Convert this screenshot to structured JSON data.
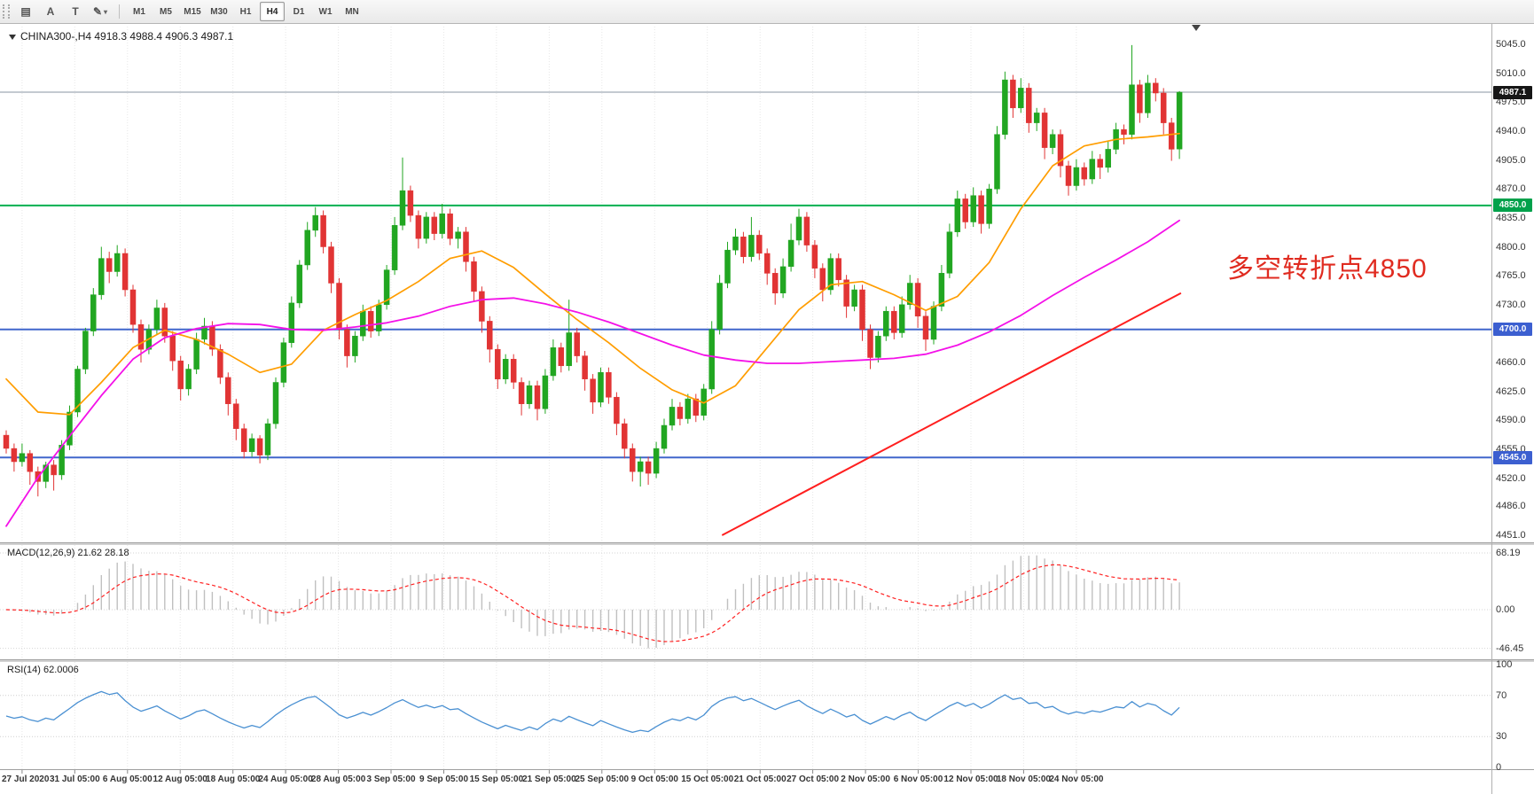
{
  "toolbar": {
    "tools": [
      {
        "id": "chart-window",
        "label": "▤",
        "caret": false
      },
      {
        "id": "arrow-tool",
        "label": "A",
        "caret": false
      },
      {
        "id": "text-tool",
        "label": "T",
        "caret": false
      },
      {
        "id": "draw-tool",
        "label": "✎",
        "caret": true
      }
    ],
    "timeframes": [
      "M1",
      "M5",
      "M15",
      "M30",
      "H1",
      "H4",
      "D1",
      "W1",
      "MN"
    ],
    "active_timeframe": "H4"
  },
  "chart_title": "CHINA300-,H4 4918.3 4988.4 4906.3 4987.1",
  "chart_data": {
    "type": "candlestick",
    "symbol": "CHINA300-",
    "timeframe": "H4",
    "ohlc_current": {
      "open": "4918.3",
      "high": "4988.4",
      "low": "4906.3",
      "close": "4987.1"
    },
    "price_axis_labels": [
      "5045.0",
      "5010.0",
      "4975.0",
      "4940.0",
      "4905.0",
      "4870.0",
      "4835.0",
      "4800.0",
      "4765.0",
      "4730.0",
      "4695.0",
      "4660.0",
      "4625.0",
      "4590.0",
      "4555.0",
      "4520.0",
      "4486.0",
      "4451.0"
    ],
    "time_axis_labels": [
      "27 Jul 2020",
      "31 Jul 05:00",
      "6 Aug 05:00",
      "12 Aug 05:00",
      "18 Aug 05:00",
      "24 Aug 05:00",
      "28 Aug 05:00",
      "3 Sep 05:00",
      "9 Sep 05:00",
      "15 Sep 05:00",
      "21 Sep 05:00",
      "25 Sep 05:00",
      "9 Oct 05:00",
      "15 Oct 05:00",
      "21 Oct 05:00",
      "27 Oct 05:00",
      "2 Nov 05:00",
      "6 Nov 05:00",
      "12 Nov 05:00",
      "18 Nov 05:00",
      "24 Nov 05:00"
    ],
    "colors": {
      "bull": "#21a621",
      "bear": "#e13434",
      "background": "#ffffff"
    },
    "candles": [
      [
        4572,
        4578,
        4550,
        4556
      ],
      [
        4556,
        4562,
        4528,
        4540
      ],
      [
        4540,
        4562,
        4534,
        4550
      ],
      [
        4550,
        4554,
        4512,
        4528
      ],
      [
        4528,
        4534,
        4498,
        4516
      ],
      [
        4516,
        4540,
        4508,
        4536
      ],
      [
        4536,
        4542,
        4505,
        4524
      ],
      [
        4524,
        4566,
        4518,
        4560
      ],
      [
        4560,
        4608,
        4554,
        4600
      ],
      [
        4600,
        4656,
        4594,
        4652
      ],
      [
        4652,
        4702,
        4646,
        4698
      ],
      [
        4698,
        4750,
        4692,
        4742
      ],
      [
        4742,
        4800,
        4736,
        4786
      ],
      [
        4786,
        4794,
        4756,
        4770
      ],
      [
        4770,
        4802,
        4764,
        4792
      ],
      [
        4792,
        4798,
        4740,
        4748
      ],
      [
        4748,
        4754,
        4696,
        4706
      ],
      [
        4706,
        4712,
        4660,
        4676
      ],
      [
        4676,
        4706,
        4670,
        4700
      ],
      [
        4700,
        4736,
        4694,
        4726
      ],
      [
        4726,
        4732,
        4684,
        4692
      ],
      [
        4692,
        4698,
        4650,
        4662
      ],
      [
        4662,
        4668,
        4614,
        4628
      ],
      [
        4628,
        4658,
        4620,
        4652
      ],
      [
        4652,
        4696,
        4646,
        4688
      ],
      [
        4688,
        4714,
        4682,
        4704
      ],
      [
        4704,
        4710,
        4668,
        4676
      ],
      [
        4676,
        4682,
        4634,
        4642
      ],
      [
        4642,
        4648,
        4596,
        4610
      ],
      [
        4610,
        4616,
        4566,
        4580
      ],
      [
        4580,
        4586,
        4544,
        4552
      ],
      [
        4552,
        4574,
        4546,
        4568
      ],
      [
        4568,
        4572,
        4538,
        4548
      ],
      [
        4548,
        4592,
        4542,
        4586
      ],
      [
        4586,
        4642,
        4580,
        4636
      ],
      [
        4636,
        4690,
        4630,
        4684
      ],
      [
        4684,
        4740,
        4678,
        4732
      ],
      [
        4732,
        4784,
        4726,
        4778
      ],
      [
        4778,
        4830,
        4772,
        4820
      ],
      [
        4820,
        4848,
        4812,
        4838
      ],
      [
        4838,
        4844,
        4792,
        4800
      ],
      [
        4800,
        4806,
        4744,
        4756
      ],
      [
        4756,
        4762,
        4688,
        4700
      ],
      [
        4700,
        4706,
        4654,
        4668
      ],
      [
        4668,
        4698,
        4660,
        4692
      ],
      [
        4692,
        4730,
        4686,
        4722
      ],
      [
        4722,
        4728,
        4690,
        4698
      ],
      [
        4698,
        4736,
        4692,
        4730
      ],
      [
        4730,
        4778,
        4724,
        4772
      ],
      [
        4772,
        4836,
        4766,
        4826
      ],
      [
        4826,
        4908,
        4820,
        4868
      ],
      [
        4868,
        4874,
        4830,
        4838
      ],
      [
        4838,
        4844,
        4798,
        4810
      ],
      [
        4810,
        4842,
        4804,
        4836
      ],
      [
        4836,
        4842,
        4808,
        4816
      ],
      [
        4816,
        4852,
        4810,
        4840
      ],
      [
        4840,
        4846,
        4802,
        4810
      ],
      [
        4810,
        4824,
        4798,
        4818
      ],
      [
        4818,
        4824,
        4770,
        4782
      ],
      [
        4782,
        4788,
        4734,
        4746
      ],
      [
        4746,
        4752,
        4696,
        4710
      ],
      [
        4710,
        4716,
        4660,
        4676
      ],
      [
        4676,
        4682,
        4628,
        4640
      ],
      [
        4640,
        4670,
        4634,
        4664
      ],
      [
        4664,
        4670,
        4628,
        4636
      ],
      [
        4636,
        4642,
        4596,
        4610
      ],
      [
        4610,
        4638,
        4604,
        4632
      ],
      [
        4632,
        4638,
        4590,
        4604
      ],
      [
        4604,
        4652,
        4598,
        4644
      ],
      [
        4644,
        4688,
        4638,
        4678
      ],
      [
        4678,
        4684,
        4648,
        4656
      ],
      [
        4656,
        4736,
        4650,
        4696
      ],
      [
        4696,
        4702,
        4660,
        4668
      ],
      [
        4668,
        4674,
        4626,
        4640
      ],
      [
        4640,
        4646,
        4598,
        4612
      ],
      [
        4612,
        4654,
        4606,
        4648
      ],
      [
        4648,
        4654,
        4610,
        4618
      ],
      [
        4618,
        4624,
        4572,
        4586
      ],
      [
        4586,
        4592,
        4544,
        4556
      ],
      [
        4556,
        4562,
        4516,
        4528
      ],
      [
        4528,
        4546,
        4510,
        4540
      ],
      [
        4540,
        4546,
        4512,
        4526
      ],
      [
        4526,
        4564,
        4520,
        4556
      ],
      [
        4556,
        4592,
        4550,
        4584
      ],
      [
        4584,
        4616,
        4578,
        4606
      ],
      [
        4606,
        4612,
        4584,
        4592
      ],
      [
        4592,
        4622,
        4586,
        4616
      ],
      [
        4616,
        4622,
        4588,
        4596
      ],
      [
        4596,
        4634,
        4590,
        4628
      ],
      [
        4628,
        4710,
        4622,
        4700
      ],
      [
        4700,
        4766,
        4694,
        4756
      ],
      [
        4756,
        4806,
        4750,
        4796
      ],
      [
        4796,
        4822,
        4790,
        4812
      ],
      [
        4812,
        4818,
        4780,
        4788
      ],
      [
        4788,
        4836,
        4782,
        4814
      ],
      [
        4814,
        4820,
        4784,
        4792
      ],
      [
        4792,
        4798,
        4754,
        4768
      ],
      [
        4768,
        4774,
        4730,
        4744
      ],
      [
        4744,
        4786,
        4738,
        4776
      ],
      [
        4776,
        4828,
        4770,
        4808
      ],
      [
        4808,
        4846,
        4802,
        4836
      ],
      [
        4836,
        4842,
        4794,
        4802
      ],
      [
        4802,
        4808,
        4762,
        4774
      ],
      [
        4774,
        4780,
        4734,
        4748
      ],
      [
        4748,
        4792,
        4742,
        4786
      ],
      [
        4786,
        4792,
        4752,
        4760
      ],
      [
        4760,
        4766,
        4714,
        4728
      ],
      [
        4728,
        4754,
        4722,
        4748
      ],
      [
        4748,
        4754,
        4686,
        4700
      ],
      [
        4700,
        4706,
        4652,
        4666
      ],
      [
        4666,
        4698,
        4660,
        4692
      ],
      [
        4692,
        4728,
        4686,
        4722
      ],
      [
        4722,
        4728,
        4688,
        4696
      ],
      [
        4696,
        4740,
        4690,
        4730
      ],
      [
        4730,
        4766,
        4724,
        4756
      ],
      [
        4756,
        4762,
        4702,
        4716
      ],
      [
        4716,
        4722,
        4674,
        4688
      ],
      [
        4688,
        4734,
        4682,
        4728
      ],
      [
        4728,
        4778,
        4722,
        4768
      ],
      [
        4768,
        4828,
        4762,
        4818
      ],
      [
        4818,
        4868,
        4812,
        4858
      ],
      [
        4858,
        4864,
        4822,
        4830
      ],
      [
        4830,
        4872,
        4824,
        4862
      ],
      [
        4862,
        4868,
        4816,
        4828
      ],
      [
        4828,
        4876,
        4822,
        4870
      ],
      [
        4870,
        4946,
        4864,
        4936
      ],
      [
        4936,
        5012,
        4930,
        5002
      ],
      [
        5002,
        5008,
        4956,
        4968
      ],
      [
        4968,
        5004,
        4962,
        4992
      ],
      [
        4992,
        4998,
        4938,
        4950
      ],
      [
        4950,
        4968,
        4940,
        4962
      ],
      [
        4962,
        4968,
        4906,
        4920
      ],
      [
        4920,
        4942,
        4912,
        4936
      ],
      [
        4936,
        4942,
        4884,
        4898
      ],
      [
        4898,
        4904,
        4862,
        4874
      ],
      [
        4874,
        4906,
        4868,
        4896
      ],
      [
        4896,
        4902,
        4874,
        4882
      ],
      [
        4882,
        4916,
        4876,
        4906
      ],
      [
        4906,
        4912,
        4882,
        4896
      ],
      [
        4896,
        4928,
        4890,
        4918
      ],
      [
        4918,
        4950,
        4912,
        4942
      ],
      [
        4942,
        4948,
        4924,
        4936
      ],
      [
        4936,
        5044,
        4930,
        4996
      ],
      [
        4996,
        5002,
        4950,
        4962
      ],
      [
        4962,
        5008,
        4956,
        4998
      ],
      [
        4998,
        5004,
        4976,
        4986
      ],
      [
        4986,
        4992,
        4936,
        4950
      ],
      [
        4950,
        4956,
        4904,
        4918
      ],
      [
        4918.3,
        4988.4,
        4906.3,
        4987.1
      ]
    ],
    "hlines": [
      {
        "price": 4987.1,
        "label": "4987.1",
        "line_color": "#8a96a3",
        "badge_color": "#161616",
        "width": 1
      },
      {
        "price": 4850.0,
        "label": "4850.0",
        "line_color": "#00b050",
        "badge_color": "#00a14b",
        "width": 2
      },
      {
        "price": 4700.0,
        "label": "4700.0",
        "line_color": "#4066cc",
        "badge_color": "#3c5fd0",
        "width": 2
      },
      {
        "price": 4545.0,
        "label": "4545.0",
        "line_color": "#4066cc",
        "badge_color": "#3c5fd0",
        "width": 2
      }
    ],
    "trendline": {
      "color": "#ff1f1f",
      "width": 2,
      "points": [
        [
          90.3,
          4451
        ],
        [
          148.2,
          4744
        ]
      ]
    },
    "ma_lines": [
      {
        "name": "ma-fast-orange",
        "color": "#ff9d00",
        "width": 1.7,
        "points": [
          [
            0,
            4640
          ],
          [
            4,
            4600
          ],
          [
            8,
            4597
          ],
          [
            12,
            4636
          ],
          [
            16,
            4678
          ],
          [
            20,
            4699
          ],
          [
            24,
            4688
          ],
          [
            28,
            4670
          ],
          [
            32,
            4648
          ],
          [
            36,
            4658
          ],
          [
            40,
            4699
          ],
          [
            44,
            4718
          ],
          [
            48,
            4735
          ],
          [
            52,
            4758
          ],
          [
            56,
            4786
          ],
          [
            60,
            4795
          ],
          [
            64,
            4775
          ],
          [
            68,
            4743
          ],
          [
            72,
            4712
          ],
          [
            76,
            4684
          ],
          [
            80,
            4653
          ],
          [
            84,
            4627
          ],
          [
            88,
            4611
          ],
          [
            92,
            4632
          ],
          [
            96,
            4678
          ],
          [
            100,
            4724
          ],
          [
            104,
            4754
          ],
          [
            108,
            4758
          ],
          [
            112,
            4742
          ],
          [
            116,
            4723
          ],
          [
            120,
            4740
          ],
          [
            124,
            4781
          ],
          [
            128,
            4846
          ],
          [
            132,
            4898
          ],
          [
            136,
            4922
          ],
          [
            140,
            4930
          ],
          [
            144,
            4933
          ],
          [
            148,
            4937
          ]
        ]
      },
      {
        "name": "ma-slow-magenta",
        "color": "#f411e8",
        "width": 1.8,
        "points": [
          [
            0,
            4462
          ],
          [
            4,
            4521
          ],
          [
            8,
            4571
          ],
          [
            12,
            4620
          ],
          [
            16,
            4664
          ],
          [
            20,
            4690
          ],
          [
            24,
            4701
          ],
          [
            28,
            4707
          ],
          [
            32,
            4706
          ],
          [
            36,
            4700
          ],
          [
            40,
            4699
          ],
          [
            44,
            4703
          ],
          [
            48,
            4708
          ],
          [
            52,
            4716
          ],
          [
            56,
            4728
          ],
          [
            60,
            4736
          ],
          [
            64,
            4738
          ],
          [
            68,
            4731
          ],
          [
            72,
            4721
          ],
          [
            76,
            4709
          ],
          [
            80,
            4695
          ],
          [
            84,
            4681
          ],
          [
            88,
            4669
          ],
          [
            92,
            4663
          ],
          [
            96,
            4659
          ],
          [
            100,
            4659
          ],
          [
            104,
            4661
          ],
          [
            108,
            4663
          ],
          [
            112,
            4665
          ],
          [
            116,
            4670
          ],
          [
            120,
            4681
          ],
          [
            124,
            4697
          ],
          [
            128,
            4717
          ],
          [
            132,
            4741
          ],
          [
            136,
            4763
          ],
          [
            140,
            4784
          ],
          [
            144,
            4806
          ],
          [
            148,
            4832
          ]
        ]
      }
    ],
    "annotation": {
      "text": "多空转折点4850",
      "color": "#e02b20"
    }
  },
  "indicators": {
    "macd": {
      "title": "MACD(12,26,9) 21.62 28.18",
      "params": "12,26,9",
      "value_main": "21.62",
      "value_signal": "28.18",
      "axis_labels": [
        "68.19",
        "0.00",
        "-46.45"
      ],
      "histogram_color": "#c0c0c0",
      "signal_color": "#ff2020"
    },
    "rsi": {
      "title": "RSI(14) 62.0006",
      "params": "14",
      "value": "62.0006",
      "axis_labels": [
        "100",
        "70",
        "30",
        "0"
      ],
      "levels": [
        70,
        30
      ],
      "line_color": "#4a90d2"
    }
  }
}
